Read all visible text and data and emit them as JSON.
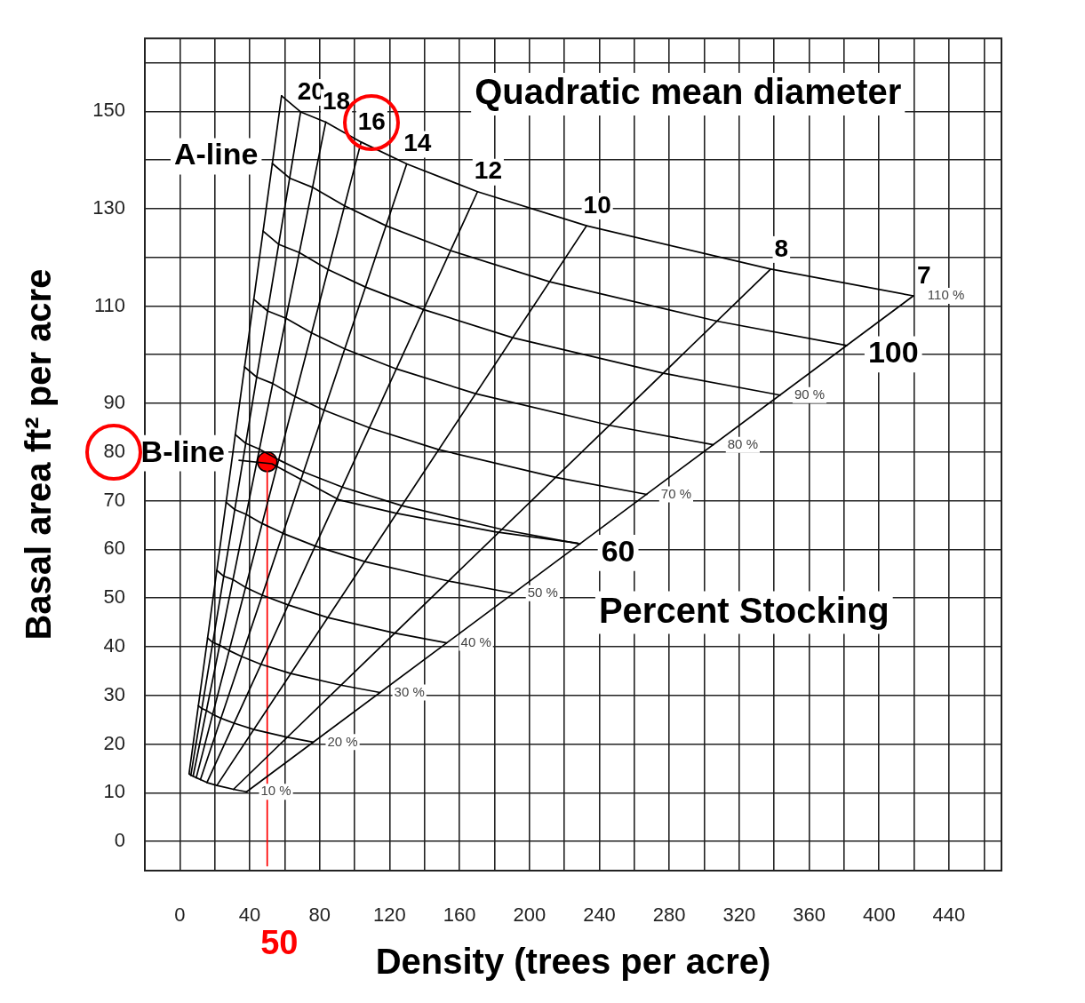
{
  "chart_data": {
    "type": "line",
    "xlabel": "Density (trees per acre)",
    "ylabel": "Basal area ft² per acre",
    "xlim": [
      -20,
      470
    ],
    "ylim": [
      -6,
      165
    ],
    "xticks": [
      0,
      {
        "value": 20,
        "label": null
      },
      40,
      {
        "value": 60,
        "label": null
      },
      80,
      {
        "value": 100,
        "label": null
      },
      120,
      {
        "value": 140,
        "label": null
      },
      160,
      {
        "value": 180,
        "label": null
      },
      200,
      {
        "value": 220,
        "label": null
      },
      240,
      {
        "value": 260,
        "label": null
      },
      280,
      {
        "value": 300,
        "label": null
      },
      320,
      {
        "value": 340,
        "label": null
      },
      360,
      {
        "value": 380,
        "label": null
      },
      400,
      {
        "value": 420,
        "label": null
      },
      440,
      {
        "value": 460,
        "label": null
      }
    ],
    "yticks": [
      0,
      10,
      20,
      30,
      40,
      50,
      60,
      70,
      80,
      90,
      {
        "value": 100,
        "label": null
      },
      110,
      {
        "value": 120,
        "label": null
      },
      130,
      {
        "value": 140,
        "label": null
      },
      150,
      {
        "value": 160,
        "label": null
      }
    ],
    "grid": true,
    "legend": false,
    "series": [
      {
        "color": "#000000",
        "x": [
          5.3,
          58.2
        ],
        "values": [
          13.9,
          153.2
        ]
      },
      {
        "name": "20",
        "color": "#000000",
        "x": [
          6.3,
          69.1
        ],
        "values": [
          13.6,
          149.9
        ]
      },
      {
        "name": "18",
        "color": "#000000",
        "x": [
          7.6,
          83.5
        ],
        "values": [
          13.4,
          147.8
        ]
      },
      {
        "name": "16",
        "color": "#000000",
        "x": [
          9.4,
          103.7
        ],
        "values": [
          13.1,
          143.7
        ]
      },
      {
        "name": "14",
        "color": "#000000",
        "x": [
          11.8,
          129.8
        ],
        "values": [
          12.7,
          139.2
        ]
      },
      {
        "name": "12",
        "color": "#000000",
        "x": [
          15.5,
          170.3
        ],
        "values": [
          12.1,
          133.5
        ]
      },
      {
        "name": "10",
        "color": "#000000",
        "x": [
          21.2,
          232.7
        ],
        "values": [
          11.5,
          126.5
        ]
      },
      {
        "name": "8",
        "color": "#000000",
        "x": [
          30.7,
          338.0
        ],
        "values": [
          10.7,
          117.6
        ]
      },
      {
        "name": "7",
        "color": "#000000",
        "x": [
          38.2,
          419.6
        ],
        "values": [
          10.2,
          112.1
        ]
      },
      {
        "name": "10 %",
        "color": "#000000",
        "x": [
          5.3,
          6.3,
          7.6,
          9.4,
          11.8,
          15.5,
          21.2,
          30.7,
          38.2
        ],
        "values": [
          13.9,
          13.6,
          13.4,
          13.1,
          12.7,
          12.1,
          11.5,
          10.7,
          10.2
        ]
      },
      {
        "name": "20 %",
        "color": "#000000",
        "x": [
          10.6,
          12.6,
          15.2,
          18.9,
          23.6,
          31.0,
          42.3,
          61.5,
          76.3
        ],
        "values": [
          27.9,
          27.3,
          26.9,
          26.1,
          25.3,
          24.3,
          23.0,
          21.4,
          20.4
        ]
      },
      {
        "name": "30 %",
        "color": "#000000",
        "x": [
          15.9,
          18.8,
          22.8,
          28.3,
          35.4,
          46.4,
          63.5,
          92.2,
          114.5
        ],
        "values": [
          41.8,
          40.9,
          40.3,
          39.2,
          38.0,
          36.4,
          34.5,
          32.1,
          30.6
        ]
      },
      {
        "name": "40 %",
        "color": "#000000",
        "x": [
          21.2,
          25.1,
          30.4,
          37.7,
          47.2,
          61.9,
          84.6,
          122.9,
          152.6
        ],
        "values": [
          55.7,
          54.5,
          53.8,
          52.2,
          50.6,
          48.6,
          46.0,
          42.8,
          40.8
        ]
      },
      {
        "name": "50 %",
        "color": "#000000",
        "x": [
          26.5,
          31.4,
          38.0,
          47.2,
          59.0,
          77.4,
          105.8,
          153.7,
          190.8
        ],
        "values": [
          69.7,
          68.2,
          67.2,
          65.3,
          63.3,
          60.7,
          57.5,
          53.5,
          51.0
        ]
      },
      {
        "color": "#000000",
        "x": [
          31.7,
          37.7,
          45.5,
          56.6,
          70.8,
          92.9,
          126.9,
          184.4,
          228.9
        ],
        "values": [
          83.6,
          81.8,
          80.6,
          78.4,
          75.9,
          72.8,
          69.0,
          64.1,
          61.1
        ]
      },
      {
        "name": "70 %",
        "color": "#000000",
        "x": [
          37.0,
          44.0,
          53.1,
          66.0,
          82.6,
          108.4,
          148.1,
          215.1,
          267.1
        ],
        "values": [
          97.5,
          95.4,
          94.1,
          91.4,
          88.6,
          85.0,
          80.5,
          74.8,
          71.3
        ]
      },
      {
        "name": "80 %",
        "color": "#000000",
        "x": [
          42.3,
          50.2,
          60.7,
          75.4,
          94.4,
          123.8,
          169.2,
          245.8,
          305.2
        ],
        "values": [
          111.4,
          109.0,
          107.5,
          104.5,
          101.2,
          97.1,
          92.0,
          85.5,
          81.5
        ]
      },
      {
        "name": "90 %",
        "color": "#000000",
        "x": [
          47.6,
          56.5,
          68.3,
          84.9,
          106.2,
          139.3,
          190.4,
          276.6,
          343.4
        ],
        "values": [
          125.4,
          122.7,
          121.0,
          117.5,
          113.9,
          109.3,
          103.5,
          96.2,
          91.7
        ]
      },
      {
        "color": "#000000",
        "x": [
          52.9,
          62.8,
          75.9,
          94.3,
          118.0,
          154.8,
          211.5,
          307.3,
          381.5
        ],
        "values": [
          139.3,
          136.3,
          134.4,
          130.6,
          126.5,
          121.4,
          115.0,
          106.9,
          101.9
        ]
      },
      {
        "name": "110 %",
        "color": "#000000",
        "x": [
          58.2,
          69.1,
          83.5,
          103.7,
          129.8,
          170.3,
          232.7,
          338.0,
          419.6
        ],
        "values": [
          153.2,
          149.9,
          147.8,
          143.7,
          139.2,
          133.5,
          126.5,
          117.6,
          112.1
        ]
      },
      {
        "color": "#000000",
        "x": [
          33.9,
          52.6,
          91.0,
          123.0,
          180.4,
          227.6
        ],
        "values": [
          78.3,
          77.6,
          70.2,
          67.5,
          63.6,
          61.3
        ]
      },
      {
        "color": "#ff0000",
        "x": [
          50,
          50
        ],
        "values": [
          -5,
          78
        ]
      },
      {
        "type": "scatter",
        "color": "#ff0000",
        "x": [
          50
        ],
        "values": [
          78
        ]
      }
    ],
    "annotations": [
      {
        "text": "A-line",
        "x": 52.9,
        "y": 139.3
      },
      {
        "text": "B-line",
        "x": 33.9,
        "y": 78.3
      },
      {
        "text": "100",
        "x": 381.5,
        "y": 101.9
      },
      {
        "text": "60",
        "x": 228.9,
        "y": 61.1
      },
      "Quadratic mean diameter",
      "Percent Stocking",
      "50"
    ]
  }
}
